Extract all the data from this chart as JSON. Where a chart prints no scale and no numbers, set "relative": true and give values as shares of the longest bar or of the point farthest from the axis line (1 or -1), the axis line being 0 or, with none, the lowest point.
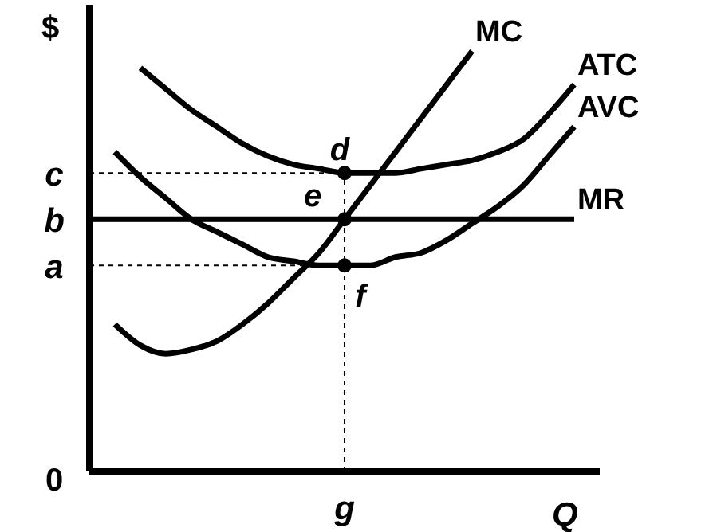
{
  "chart_data": {
    "type": "line",
    "relative": true,
    "xlabel": "Q",
    "ylabel": "$",
    "marker": "none",
    "line_style": "solid",
    "categories": [
      null,
      null,
      null,
      null,
      null,
      null,
      null,
      null,
      null,
      null,
      null,
      null,
      null,
      null,
      null,
      null,
      null,
      null,
      null,
      null
    ],
    "series": [
      {
        "name": "MC",
        "color": "#000000",
        "values": [
          null,
          0.35,
          0.3,
          0.28,
          0.29,
          0.31,
          0.35,
          0.4,
          0.46,
          0.52,
          0.6,
          0.68,
          0.76,
          0.84,
          0.92,
          1,
          null,
          null,
          null,
          null
        ]
      },
      {
        "name": "ATC",
        "color": "#000000",
        "values": [
          null,
          null,
          0.96,
          0.91,
          0.86,
          0.82,
          0.78,
          0.75,
          0.73,
          0.72,
          0.71,
          0.71,
          0.71,
          0.72,
          0.73,
          0.74,
          0.76,
          0.79,
          0.85,
          0.92
        ]
      },
      {
        "name": "AVC",
        "color": "#000000",
        "values": [
          null,
          0.76,
          0.7,
          0.65,
          0.6,
          0.57,
          0.54,
          0.51,
          0.5,
          0.49,
          0.49,
          0.49,
          0.51,
          0.52,
          0.55,
          0.59,
          0.63,
          0.68,
          0.75,
          0.82
        ]
      },
      {
        "name": "MR",
        "color": "#000000",
        "values": [
          0.6,
          0.6,
          0.6,
          0.6,
          0.6,
          0.6,
          0.6,
          0.6,
          0.6,
          0.6,
          0.6,
          0.6,
          0.6,
          0.6,
          0.6,
          0.6,
          0.6,
          0.6,
          0.6,
          0.6
        ]
      }
    ],
    "ref_lines": [
      {
        "axis": "y",
        "value": 0.71,
        "label": "c",
        "line_style": "dashed",
        "color": "#000000"
      },
      {
        "axis": "y",
        "value": 0.6,
        "label": "b",
        "line_style": "solid",
        "color": "#000000"
      },
      {
        "axis": "y",
        "value": 0.49,
        "label": "a",
        "line_style": "dashed",
        "color": "#000000"
      }
    ],
    "annotations": [
      "0",
      "g",
      {
        "text": "d",
        "y": 0.71
      },
      {
        "text": "e",
        "y": 0.6
      },
      {
        "text": "f",
        "y": 0.49
      }
    ]
  }
}
